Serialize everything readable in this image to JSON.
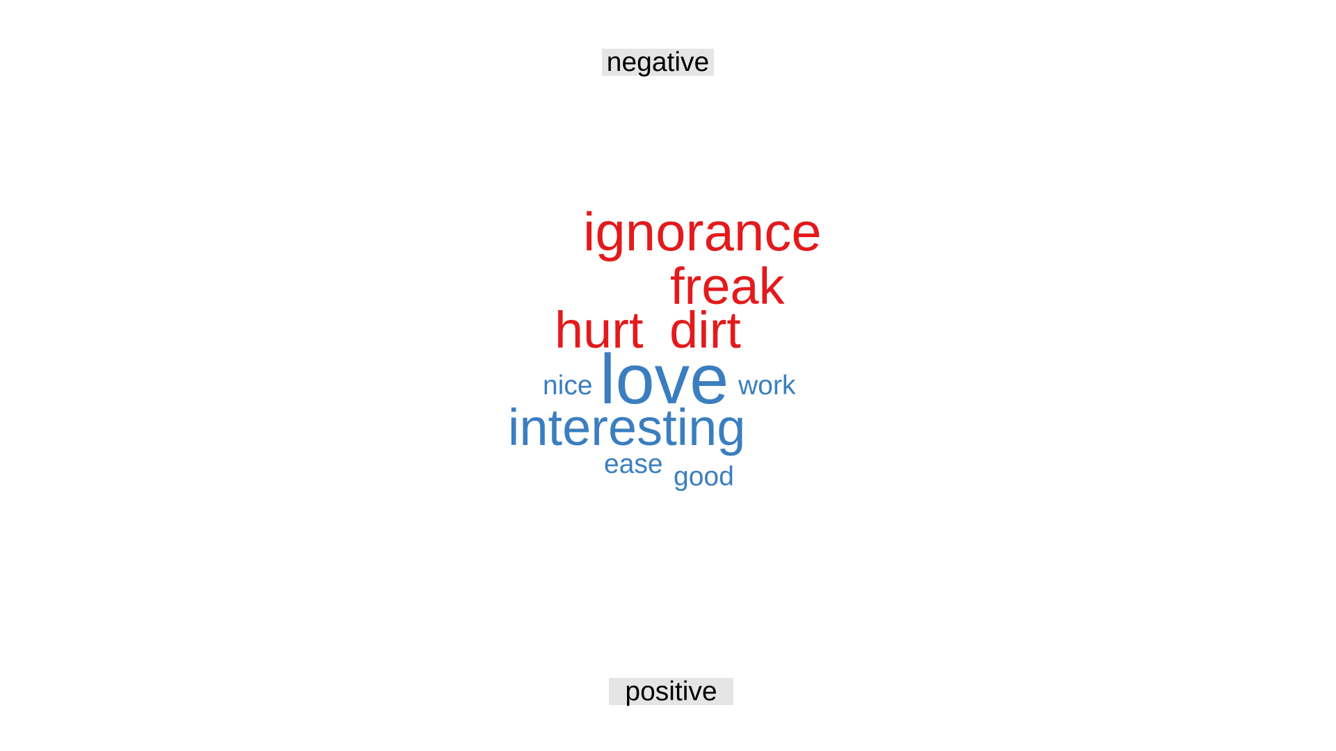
{
  "chart_data": {
    "type": "wordcloud",
    "groups": [
      {
        "name": "negative",
        "color": "#e31a1c"
      },
      {
        "name": "positive",
        "color": "#3a7ebf"
      }
    ],
    "words": [
      {
        "text": "ignorance",
        "group": "negative",
        "weight": 1.0
      },
      {
        "text": "freak",
        "group": "negative",
        "weight": 0.95
      },
      {
        "text": "hurt",
        "group": "negative",
        "weight": 0.95
      },
      {
        "text": "dirt",
        "group": "negative",
        "weight": 0.95
      },
      {
        "text": "love",
        "group": "positive",
        "weight": 1.3
      },
      {
        "text": "interesting",
        "group": "positive",
        "weight": 0.95
      },
      {
        "text": "nice",
        "group": "positive",
        "weight": 0.5
      },
      {
        "text": "work",
        "group": "positive",
        "weight": 0.5
      },
      {
        "text": "ease",
        "group": "positive",
        "weight": 0.5
      },
      {
        "text": "good",
        "group": "positive",
        "weight": 0.5
      }
    ]
  }
}
